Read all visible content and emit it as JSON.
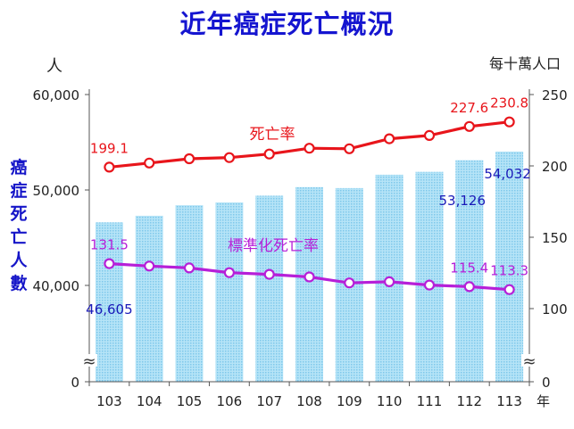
{
  "chart_data": {
    "type": "bar+line",
    "title": "近年癌症死亡概況",
    "categories": [
      "103",
      "104",
      "105",
      "106",
      "107",
      "108",
      "109",
      "110",
      "111",
      "112",
      "113"
    ],
    "x_unit": "年",
    "left_axis": {
      "unit": "人",
      "label": "癌症死亡人數",
      "ticks": [
        "60,000",
        "50,000",
        "40,000",
        "0"
      ],
      "tick_values": [
        60000,
        50000,
        40000,
        0
      ],
      "range": [
        0,
        60000
      ],
      "broken": true
    },
    "right_axis": {
      "unit": "每十萬人口",
      "ticks": [
        "250",
        "200",
        "150",
        "100",
        "0"
      ],
      "tick_values": [
        250,
        200,
        150,
        100,
        0
      ],
      "range": [
        0,
        250
      ],
      "broken": true
    },
    "bars": {
      "name": "癌症死亡人數",
      "values": [
        46605,
        47300,
        48400,
        48700,
        49400,
        50300,
        50200,
        51600,
        51900,
        53126,
        54032
      ],
      "color": "#9fd9f3"
    },
    "series": [
      {
        "name": "死亡率",
        "values": [
          199.1,
          202.0,
          205.0,
          205.8,
          208.3,
          212.4,
          212.0,
          219.0,
          221.3,
          227.6,
          230.8
        ],
        "color": "#e8151b"
      },
      {
        "name": "標準化死亡率",
        "values": [
          131.5,
          129.8,
          128.5,
          125.2,
          124.0,
          122.2,
          118.0,
          118.8,
          116.5,
          115.4,
          113.3
        ],
        "color": "#b61fd8"
      }
    ],
    "data_labels": [
      {
        "series": "死亡率",
        "index": 0,
        "text": "199.1"
      },
      {
        "series": "死亡率",
        "index": 9,
        "text": "227.6"
      },
      {
        "series": "死亡率",
        "index": 10,
        "text": "230.8"
      },
      {
        "series": "標準化死亡率",
        "index": 0,
        "text": "131.5"
      },
      {
        "series": "標準化死亡率",
        "index": 9,
        "text": "115.4"
      },
      {
        "series": "標準化死亡率",
        "index": 10,
        "text": "113.3"
      },
      {
        "series": "癌症死亡人數",
        "index": 0,
        "text": "46,605"
      },
      {
        "series": "癌症死亡人數",
        "index": 9,
        "text": "53,126"
      },
      {
        "series": "癌症死亡人數",
        "index": 10,
        "text": "54,032"
      }
    ],
    "break_symbol": "≈"
  }
}
